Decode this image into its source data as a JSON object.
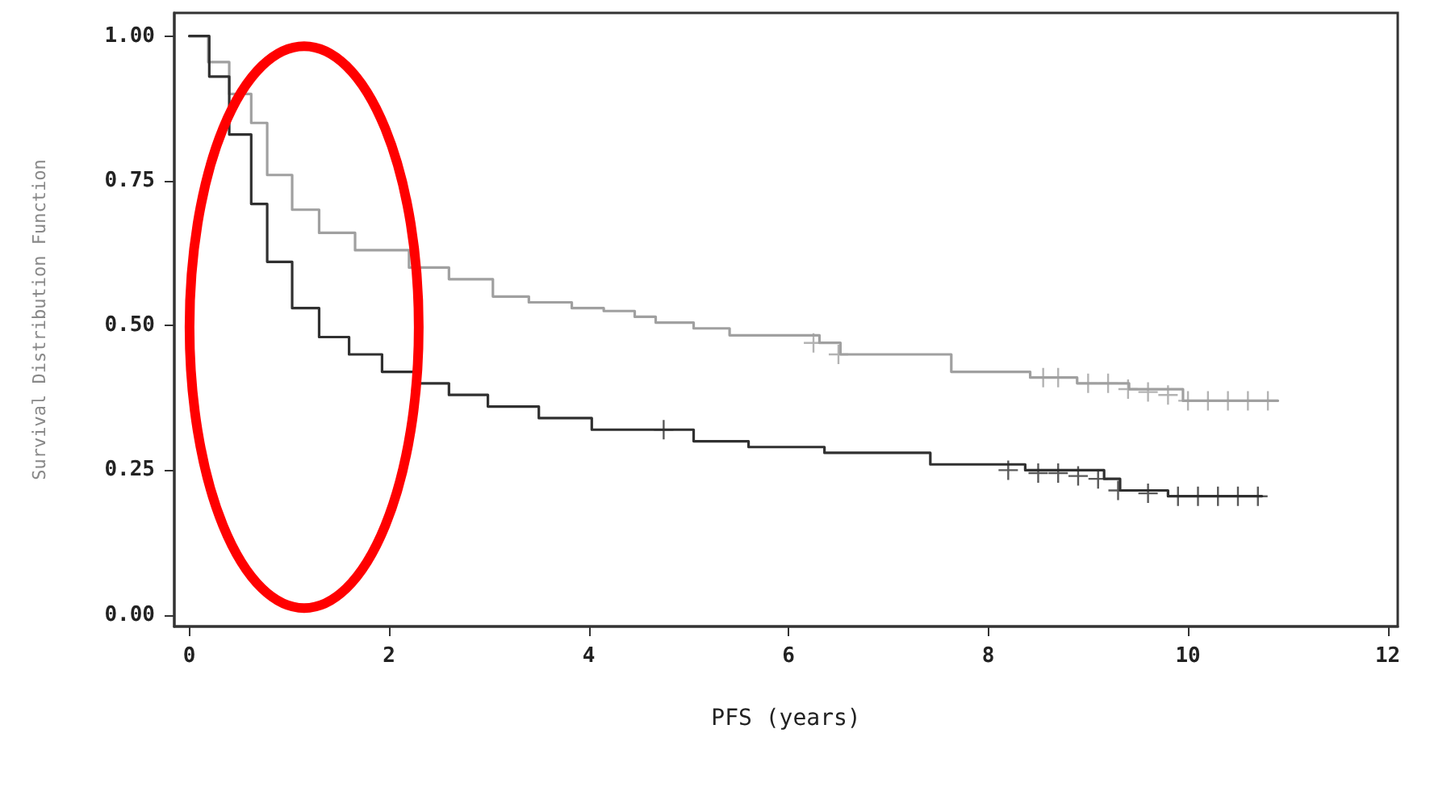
{
  "chart_data": {
    "type": "step",
    "xlabel": "PFS (years)",
    "ylabel": "Survival Distribution Function",
    "xlim": [
      -0.15,
      12.1
    ],
    "xticks": [
      0,
      2,
      4,
      6,
      8,
      10,
      12
    ],
    "ylim": [
      -0.02,
      1.04
    ],
    "yticks": [
      {
        "value": 0,
        "label": "0.00"
      },
      {
        "value": 0.25,
        "label": "0.25"
      },
      {
        "value": 0.5,
        "label": "0.50"
      },
      {
        "value": 0.75,
        "label": "0.75"
      },
      {
        "value": 1,
        "label": "1.00"
      }
    ],
    "grid": false,
    "marker": "none",
    "line_style": "solid",
    "series": [
      {
        "color": "#a0a0a0",
        "x": [
          0,
          0.19,
          0.4,
          0.62,
          0.78,
          1.03,
          1.3,
          1.66,
          2.2,
          2.6,
          3.04,
          3.4,
          3.83,
          4.15,
          4.46,
          4.67,
          5.05,
          5.41,
          6.31,
          6.52,
          7.52,
          7.63,
          8.42,
          8.89,
          9.41,
          9.95,
          10.9
        ],
        "values": [
          1,
          0.955,
          0.9,
          0.85,
          0.76,
          0.7,
          0.66,
          0.63,
          0.6,
          0.58,
          0.55,
          0.54,
          0.53,
          0.525,
          0.515,
          0.505,
          0.495,
          0.483,
          0.47,
          0.45,
          0.45,
          0.42,
          0.41,
          0.4,
          0.39,
          0.37,
          0.37
        ]
      },
      {
        "color": "#303030",
        "x": [
          0,
          0.2,
          0.4,
          0.62,
          0.78,
          1.03,
          1.3,
          1.6,
          1.93,
          2.29,
          2.6,
          2.99,
          3.5,
          4.03,
          4.94,
          5.05,
          5.6,
          6.36,
          7.42,
          8.37,
          9.16,
          9.32,
          9.8,
          10.74
        ],
        "values": [
          1,
          0.93,
          0.83,
          0.71,
          0.61,
          0.53,
          0.48,
          0.45,
          0.42,
          0.4,
          0.38,
          0.36,
          0.34,
          0.32,
          0.32,
          0.3,
          0.29,
          0.28,
          0.26,
          0.25,
          0.235,
          0.215,
          0.205,
          0.205
        ]
      },
      {
        "type": "scatter",
        "marker": "cross",
        "color": "#a0a0a0",
        "x": [
          6.25,
          6.5,
          8.55,
          8.7,
          9.0,
          9.2,
          9.4,
          9.6,
          9.8,
          10.0,
          10.2,
          10.4,
          10.6,
          10.8
        ],
        "values": [
          0.47,
          0.45,
          0.41,
          0.41,
          0.4,
          0.4,
          0.39,
          0.385,
          0.38,
          0.37,
          0.37,
          0.37,
          0.37,
          0.37
        ]
      },
      {
        "type": "scatter",
        "marker": "cross",
        "color": "#303030",
        "x": [
          4.75,
          8.2,
          8.5,
          8.7,
          8.9,
          9.1,
          9.3,
          9.6,
          9.9,
          10.1,
          10.3,
          10.5,
          10.7
        ],
        "values": [
          0.32,
          0.25,
          0.245,
          0.245,
          0.24,
          0.235,
          0.215,
          0.21,
          0.205,
          0.205,
          0.205,
          0.205,
          0.205
        ]
      }
    ]
  }
}
